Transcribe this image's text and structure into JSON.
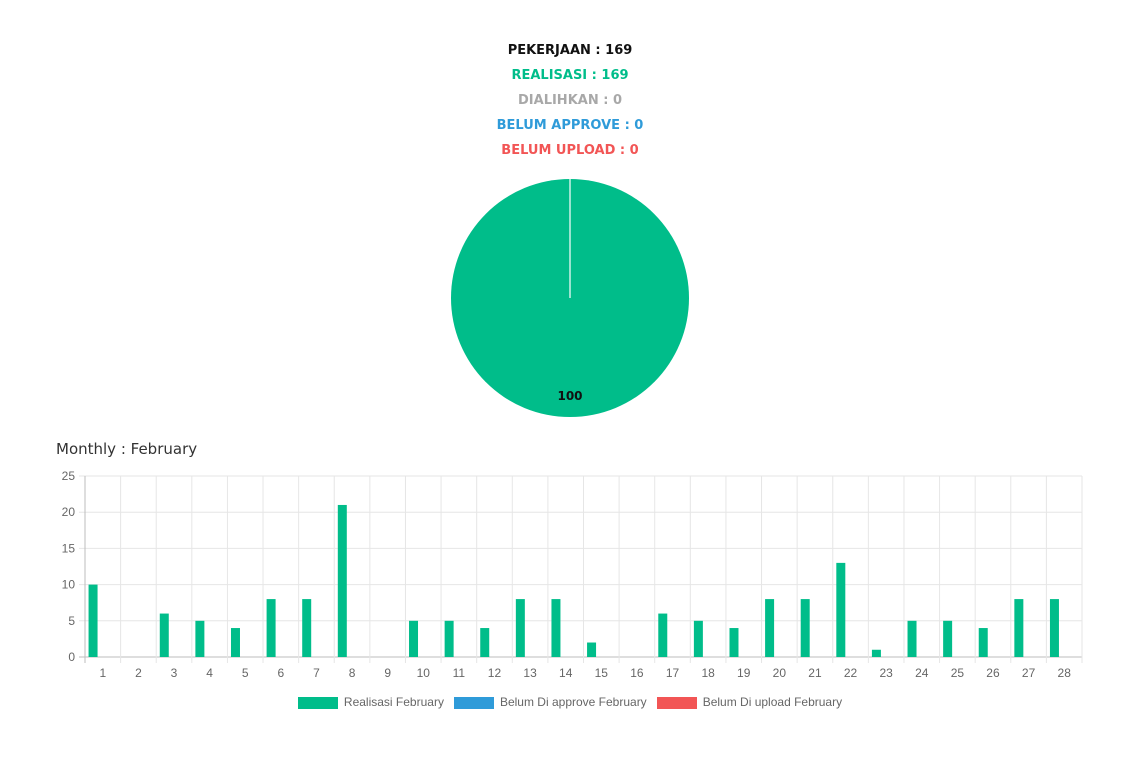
{
  "summary": {
    "pekerjaan": "PEKERJAAN : 169",
    "realisasi": "REALISASI : 169",
    "dialihkan": "DIALIHKAN : 0",
    "belum_approve": "BELUM APPROVE : 0",
    "belum_upload": "BELUM UPLOAD : 0"
  },
  "colors": {
    "pekerjaan": "#111111",
    "realisasi": "#00bd8a",
    "dialihkan": "#a8a8a8",
    "belum_approve": "#2f9bd9",
    "belum_upload": "#f25555"
  },
  "monthly_title": "Monthly : February",
  "chart_data": [
    {
      "type": "pie",
      "slices": [
        {
          "label": "Realisasi",
          "value": 100,
          "color": "#00bd8a"
        }
      ],
      "data_label": "100"
    },
    {
      "type": "bar",
      "categories": [
        "1",
        "2",
        "3",
        "4",
        "5",
        "6",
        "7",
        "8",
        "9",
        "10",
        "11",
        "12",
        "13",
        "14",
        "15",
        "16",
        "17",
        "18",
        "19",
        "20",
        "21",
        "22",
        "23",
        "24",
        "25",
        "26",
        "27",
        "28"
      ],
      "series": [
        {
          "name": "Realisasi February",
          "color": "#00bd8a",
          "values": [
            10,
            0,
            6,
            5,
            4,
            8,
            8,
            21,
            0,
            5,
            5,
            4,
            8,
            8,
            2,
            0,
            6,
            5,
            4,
            8,
            8,
            13,
            1,
            5,
            5,
            4,
            8,
            8
          ]
        },
        {
          "name": "Belum Di approve February",
          "color": "#2f9bd9",
          "values": [
            0,
            0,
            0,
            0,
            0,
            0,
            0,
            0,
            0,
            0,
            0,
            0,
            0,
            0,
            0,
            0,
            0,
            0,
            0,
            0,
            0,
            0,
            0,
            0,
            0,
            0,
            0,
            0
          ]
        },
        {
          "name": "Belum Di upload February",
          "color": "#f25555",
          "values": [
            0,
            0,
            0,
            0,
            0,
            0,
            0,
            0,
            0,
            0,
            0,
            0,
            0,
            0,
            0,
            0,
            0,
            0,
            0,
            0,
            0,
            0,
            0,
            0,
            0,
            0,
            0,
            0
          ]
        }
      ],
      "yticks": [
        0,
        5,
        10,
        15,
        20,
        25
      ],
      "ylim": [
        0,
        25
      ],
      "grid": true,
      "legend_position": "bottom"
    }
  ]
}
